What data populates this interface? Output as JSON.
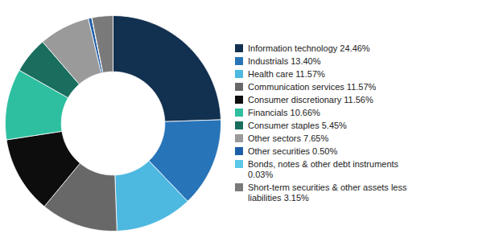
{
  "chart_data": {
    "type": "pie",
    "categories": [
      "Information technology 24.46%",
      "Industrials 13.40%",
      "Health care 11.57%",
      "Communication services 11.57%",
      "Consumer discretionary 11.56%",
      "Financials 10.66%",
      "Consumer staples 5.45%",
      "Other sectors 7.65%",
      "Other securities 0.50%",
      "Bonds, notes & other debt instruments\n0.03%",
      "Short-term securities & other assets less\nliabilities 3.15%"
    ],
    "values": [
      24.46,
      13.4,
      11.57,
      11.57,
      11.56,
      10.66,
      5.45,
      7.65,
      0.5,
      0.03,
      3.15
    ],
    "colors": [
      "#12304f",
      "#2874b8",
      "#4db8e0",
      "#686868",
      "#0d0d0d",
      "#2dbfa0",
      "#1a6e5e",
      "#9a9a9a",
      "#1e5ea8",
      "#5bc8e8",
      "#7a7a7a"
    ],
    "legend": "right"
  }
}
